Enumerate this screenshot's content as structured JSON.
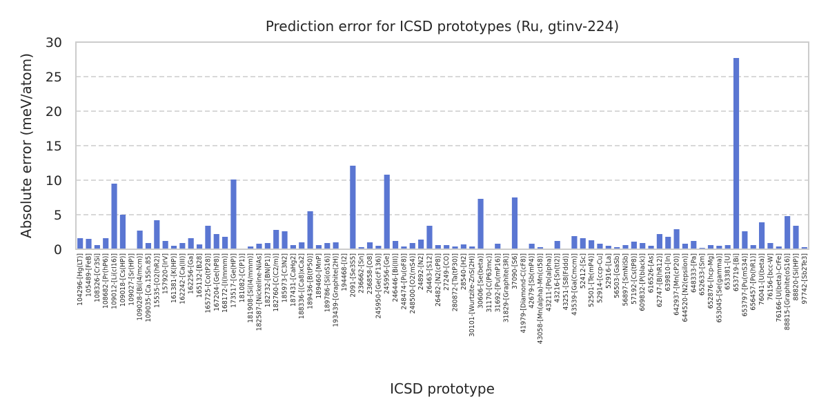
{
  "chart_data": {
    "type": "bar",
    "title": "Prediction error for ICSD prototypes (Ru, gtinv-224)",
    "xlabel": "ICSD prototype",
    "ylabel": "Absolute error (meV/atom)",
    "ylim": [
      0,
      30
    ],
    "yticks": [
      0,
      5,
      10,
      15,
      20,
      25,
      30
    ],
    "grid": "horizontal dashed",
    "bar_color": "#5a76d2",
    "categories": [
      "104296-[Hg(LT)]",
      "105489-[FeB]",
      "108326-[Cr3Si]",
      "108682-[Pr(hP6)]",
      "109012-[Li(cI16)]",
      "109018-[Cs(HP)]",
      "109027-[Sr(HP)]",
      "109028-[Bi(I4/mcm)]",
      "109035-[Ca.15Sn.85]",
      "15535-[O2(hR2)]",
      "157920-[IrV]",
      "161381-[K(HP)]",
      "162242-[Ca(III)]",
      "162256-[Ga]",
      "165132-[B28]",
      "165725-[Co(tP28)]",
      "167204-[Ge(hP8)]",
      "168172-[I(Immm)]",
      "173517-[Ge(HP)]",
      "181082-[C(P1)]",
      "181908-[Si(I4/mmm)]",
      "182587-[Nickeline-NiAs]",
      "182732-[BN(P1)]",
      "182760-[C(C2/m)]",
      "185973-[C3N2]",
      "187431-[CaHg2]",
      "188336-[(Ca8)xCa2]",
      "189436-[B(tP50)]",
      "189460-[MnP]",
      "189786-[Si(oS16)]",
      "193439-[Graphite(2H)]",
      "194468-[I2]",
      "2091-[Se3S5]",
      "236662-[Sn]",
      "236858-[O8]",
      "245950-[Ge(cF136)]",
      "245956-[Ge]",
      "246446-[Bi(III)]",
      "248474-[Pu(oF8)]",
      "248500-[O2(mS4)]",
      "24892-[N2]",
      "26463-[S12]",
      "26482-[N2(cP8)]",
      "27249-[CO]",
      "280872-[Ta(tP30)]",
      "28540-[H2]",
      "30101-[Wurtzite-ZnS(2H)]",
      "30606-[Se(beta)]",
      "31170-[C(P63mc)]",
      "31692-[Pu(mP16)]",
      "31829-[Graphite(3R)]",
      "37090-[S6]",
      "41979-[Diamond-C(cF8)]",
      "42679-[Sb(mP4)]",
      "43058-[Mn(alpha)-Mn(cI58)]",
      "43211-[Po(alpha)]",
      "43216-[Sn(tI2)]",
      "43251-[S8(Fddd)]",
      "43539-[Ga(Cmcm)]",
      "52412-[Sc]",
      "52501-[Te(mP4)]",
      "52914-[ccp-Cu]",
      "52916-[La]",
      "56503-[GaSb]",
      "56897-[SmNiSb]",
      "57192-[Cs(tP8)]",
      "609832-[P(black)]",
      "616526-[As]",
      "62747-[B(hR12)]",
      "639810-[In]",
      "642937-[Mn(cP20)]",
      "644520-[N2(epsilon)]",
      "648333-[Pa]",
      "652633-[Sm]",
      "652876-[hcp-Mg]",
      "653045-[Se(gamma)]",
      "653381-[U]",
      "653719-[Bi]",
      "653797-[Pu(mS34)]",
      "656457-[Po(hR1)]",
      "76041-[U(beta)]",
      "76156-[bcc-W]",
      "76166-[U(beta)-CrFe]",
      "88815-[Graphite(oS16)]",
      "88820-[Si(HP)]",
      "97742-[Sb2Te3]"
    ],
    "values": [
      1.6,
      1.5,
      0.6,
      1.6,
      9.5,
      5.0,
      0.0,
      2.7,
      0.9,
      4.2,
      1.2,
      0.5,
      0.9,
      1.6,
      0.7,
      3.4,
      2.2,
      1.8,
      10.1,
      0.0,
      0.4,
      0.8,
      0.9,
      2.8,
      2.6,
      0.6,
      1.0,
      5.5,
      0.6,
      0.9,
      1.0,
      0.0,
      12.1,
      0.3,
      1.0,
      0.5,
      10.8,
      1.2,
      0.4,
      0.9,
      1.4,
      3.4,
      0.6,
      0.6,
      0.4,
      0.7,
      0.4,
      7.3,
      0.0,
      0.8,
      0.0,
      7.5,
      0.0,
      0.8,
      0.3,
      0.0,
      1.2,
      0.0,
      1.9,
      1.6,
      1.3,
      0.8,
      0.5,
      0.3,
      0.6,
      1.1,
      0.9,
      0.5,
      2.2,
      1.8,
      2.9,
      0.8,
      1.2,
      0.2,
      0.6,
      0.5,
      0.6,
      27.7,
      2.6,
      0.6,
      3.9,
      0.9,
      0.4,
      4.8,
      3.4,
      0.3
    ]
  }
}
